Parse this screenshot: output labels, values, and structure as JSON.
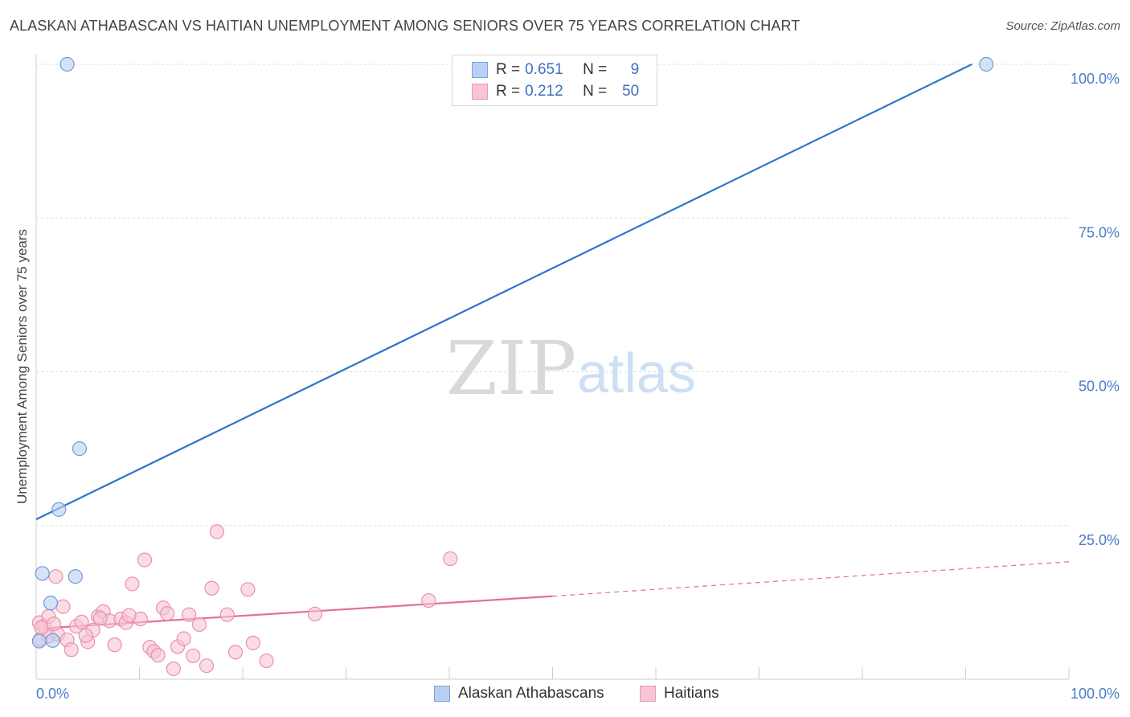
{
  "header": {
    "title": "ALASKAN ATHABASCAN VS HAITIAN UNEMPLOYMENT AMONG SENIORS OVER 75 YEARS CORRELATION CHART",
    "source": "Source: ZipAtlas.com"
  },
  "watermark": {
    "zip": "ZIP",
    "atlas": "atlas"
  },
  "legend": {
    "rows": [
      {
        "r_label": "R =",
        "r_value": "0.651",
        "n_label": "N =",
        "n_value": "9",
        "color": "#b8d0f2",
        "border": "#7aa3d9"
      },
      {
        "r_label": "R =",
        "r_value": "0.212",
        "n_label": "N =",
        "n_value": "50",
        "color": "#f8c5d4",
        "border": "#e89ab2"
      }
    ]
  },
  "bottom_legend": {
    "items": [
      {
        "label": "Alaskan Athabascans",
        "color": "#b8d0f2",
        "border": "#7aa3d9"
      },
      {
        "label": "Haitians",
        "color": "#f8c5d4",
        "border": "#e89ab2"
      }
    ]
  },
  "chart_data": {
    "type": "scatter",
    "title": "ALASKAN ATHABASCAN VS HAITIAN UNEMPLOYMENT AMONG SENIORS OVER 75 YEARS CORRELATION CHART",
    "xlabel": "",
    "ylabel": "Unemployment Among Seniors over 75 years",
    "xlim": [
      0,
      100
    ],
    "ylim": [
      0,
      100
    ],
    "x_tick_labels": [
      "0.0%",
      "100.0%"
    ],
    "y_tick_labels": [
      "100.0%",
      "75.0%",
      "50.0%",
      "25.0%"
    ],
    "y_tick_values": [
      100,
      75,
      50,
      25
    ],
    "grid": true,
    "legend_position": "top-center",
    "colors": {
      "blue_fill": "#b8d0f2",
      "blue_stroke": "#6f9bd6",
      "blue_line": "#2f74cf",
      "pink_fill": "#f8c5d4",
      "pink_stroke": "#e891ad",
      "pink_line": "#e36e98",
      "grid": "#dcdcdc",
      "tick": "#4a7cc9"
    },
    "series": [
      {
        "name": "Alaskan Athabascans",
        "R": 0.651,
        "N": 9,
        "points": [
          [
            3.0,
            100.0
          ],
          [
            92.0,
            100.0
          ],
          [
            4.2,
            37.5
          ],
          [
            2.2,
            27.6
          ],
          [
            0.6,
            17.2
          ],
          [
            3.8,
            16.7
          ],
          [
            1.4,
            12.4
          ],
          [
            0.3,
            6.2
          ],
          [
            1.6,
            6.3
          ]
        ],
        "trend": {
          "x0": 0,
          "y0": 26.0,
          "x1": 90.6,
          "y1": 100.0,
          "dashed_to": null
        }
      },
      {
        "name": "Haitians",
        "R": 0.212,
        "N": 50,
        "points": [
          [
            0.3,
            9.2
          ],
          [
            0.8,
            8.6
          ],
          [
            1.2,
            10.2
          ],
          [
            1.9,
            16.7
          ],
          [
            2.6,
            11.8
          ],
          [
            0.4,
            6.5
          ],
          [
            1.2,
            7.0
          ],
          [
            2.1,
            7.3
          ],
          [
            3.0,
            6.4
          ],
          [
            3.4,
            4.8
          ],
          [
            3.9,
            8.6
          ],
          [
            4.4,
            9.3
          ],
          [
            5.0,
            6.1
          ],
          [
            5.5,
            8.0
          ],
          [
            6.0,
            10.2
          ],
          [
            6.5,
            11.0
          ],
          [
            7.1,
            9.5
          ],
          [
            7.6,
            5.6
          ],
          [
            8.2,
            9.8
          ],
          [
            8.7,
            9.2
          ],
          [
            9.3,
            15.5
          ],
          [
            10.1,
            9.8
          ],
          [
            10.5,
            19.4
          ],
          [
            11.0,
            5.2
          ],
          [
            11.4,
            4.5
          ],
          [
            11.8,
            3.9
          ],
          [
            12.3,
            11.6
          ],
          [
            12.7,
            10.7
          ],
          [
            13.3,
            1.7
          ],
          [
            13.7,
            5.3
          ],
          [
            14.3,
            6.6
          ],
          [
            14.8,
            10.5
          ],
          [
            15.2,
            3.8
          ],
          [
            15.8,
            8.9
          ],
          [
            16.5,
            2.2
          ],
          [
            17.0,
            14.8
          ],
          [
            17.5,
            24.0
          ],
          [
            18.5,
            10.5
          ],
          [
            19.3,
            4.4
          ],
          [
            20.5,
            14.6
          ],
          [
            21.0,
            5.9
          ],
          [
            22.3,
            3.0
          ],
          [
            27.0,
            10.6
          ],
          [
            38.0,
            12.8
          ],
          [
            40.1,
            19.6
          ],
          [
            0.5,
            8.4
          ],
          [
            1.7,
            9.0
          ],
          [
            4.8,
            7.1
          ],
          [
            6.2,
            9.9
          ],
          [
            9.0,
            10.4
          ]
        ],
        "trend": {
          "x0": 0,
          "y0": 8.2,
          "x1": 50,
          "y1": 13.5,
          "dashed_to": {
            "x": 100,
            "y": 19.1
          }
        }
      }
    ]
  }
}
